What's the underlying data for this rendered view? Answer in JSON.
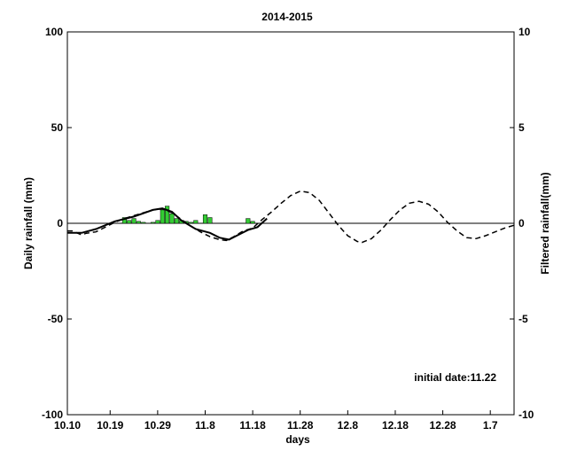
{
  "chart_data": {
    "type": "bar+line",
    "title": "2014-2015",
    "xlabel": "days",
    "ylabel_left": "Daily rainfall (mm)",
    "ylabel_right": "Filtered rainfall(mm)",
    "x_unit": "days since 10.10",
    "xlim": [
      0,
      94
    ],
    "ylim_left": [
      -100,
      100
    ],
    "ylim_right": [
      -10,
      10
    ],
    "yticks_left": [
      -100,
      -50,
      0,
      50,
      100
    ],
    "yticks_right": [
      -10,
      -5,
      0,
      5,
      10
    ],
    "xticks": [
      {
        "x": 0,
        "label": "10.10"
      },
      {
        "x": 9,
        "label": "10.19"
      },
      {
        "x": 19,
        "label": "10.29"
      },
      {
        "x": 29,
        "label": "11.8"
      },
      {
        "x": 39,
        "label": "11.18"
      },
      {
        "x": 49,
        "label": "11.28"
      },
      {
        "x": 59,
        "label": "12.8"
      },
      {
        "x": 69,
        "label": "12.18"
      },
      {
        "x": 79,
        "label": "12.28"
      },
      {
        "x": 89,
        "label": "1.7"
      }
    ],
    "grid": false,
    "annotation": "initial date:11.22",
    "bar_color": "#33cc33",
    "rainfall_bars": [
      {
        "x": 12,
        "y": 3
      },
      {
        "x": 13,
        "y": 1.5
      },
      {
        "x": 14,
        "y": 2.5
      },
      {
        "x": 15,
        "y": 1
      },
      {
        "x": 16,
        "y": 0.5
      },
      {
        "x": 18,
        "y": 0.5
      },
      {
        "x": 19,
        "y": 1.5
      },
      {
        "x": 20,
        "y": 7
      },
      {
        "x": 21,
        "y": 9
      },
      {
        "x": 22,
        "y": 5
      },
      {
        "x": 23,
        "y": 2.5
      },
      {
        "x": 24,
        "y": 1.5
      },
      {
        "x": 25,
        "y": 1
      },
      {
        "x": 26,
        "y": 0.5
      },
      {
        "x": 27,
        "y": 1.5
      },
      {
        "x": 29,
        "y": 4.5
      },
      {
        "x": 30,
        "y": 3
      },
      {
        "x": 38,
        "y": 2.5
      },
      {
        "x": 39,
        "y": 1
      }
    ],
    "series": [
      {
        "style": "solid",
        "axis": "right",
        "points": [
          [
            0,
            -0.5
          ],
          [
            3,
            -0.5
          ],
          [
            6,
            -0.3
          ],
          [
            10,
            0.1
          ],
          [
            14,
            0.35
          ],
          [
            18,
            0.7
          ],
          [
            20,
            0.78
          ],
          [
            22,
            0.6
          ],
          [
            24,
            0.15
          ],
          [
            27,
            -0.3
          ],
          [
            30,
            -0.5
          ],
          [
            32,
            -0.75
          ],
          [
            34,
            -0.85
          ],
          [
            36,
            -0.6
          ],
          [
            38,
            -0.35
          ],
          [
            40,
            -0.2
          ],
          [
            42,
            0.25
          ]
        ]
      },
      {
        "style": "dashed",
        "axis": "right",
        "points": [
          [
            0,
            -0.4
          ],
          [
            1,
            -0.4
          ],
          [
            2,
            -0.5
          ],
          [
            3,
            -0.6
          ],
          [
            4,
            -0.52
          ],
          [
            6,
            -0.45
          ],
          [
            8,
            -0.2
          ],
          [
            10,
            0.05
          ],
          [
            12,
            0.25
          ],
          [
            14,
            0.4
          ],
          [
            16,
            0.55
          ],
          [
            18,
            0.7
          ],
          [
            20,
            0.75
          ],
          [
            22,
            0.55
          ],
          [
            24,
            0.2
          ],
          [
            26,
            -0.15
          ],
          [
            28,
            -0.45
          ],
          [
            30,
            -0.7
          ],
          [
            32,
            -0.85
          ],
          [
            33.5,
            -0.9
          ],
          [
            35,
            -0.7
          ],
          [
            37,
            -0.4
          ],
          [
            39,
            -0.25
          ],
          [
            41,
            0.2
          ],
          [
            43,
            0.6
          ],
          [
            45,
            1.05
          ],
          [
            47,
            1.45
          ],
          [
            49,
            1.68
          ],
          [
            51,
            1.6
          ],
          [
            53,
            1.2
          ],
          [
            55,
            0.55
          ],
          [
            57,
            -0.1
          ],
          [
            59,
            -0.65
          ],
          [
            61,
            -0.95
          ],
          [
            62,
            -1.0
          ],
          [
            64,
            -0.8
          ],
          [
            66,
            -0.35
          ],
          [
            68,
            0.2
          ],
          [
            70,
            0.7
          ],
          [
            72,
            1.05
          ],
          [
            74,
            1.15
          ],
          [
            76,
            1.0
          ],
          [
            78,
            0.6
          ],
          [
            80,
            0.05
          ],
          [
            82,
            -0.4
          ],
          [
            84,
            -0.75
          ],
          [
            86,
            -0.8
          ],
          [
            88,
            -0.65
          ],
          [
            90,
            -0.45
          ],
          [
            92,
            -0.25
          ],
          [
            94,
            -0.1
          ]
        ]
      }
    ]
  }
}
